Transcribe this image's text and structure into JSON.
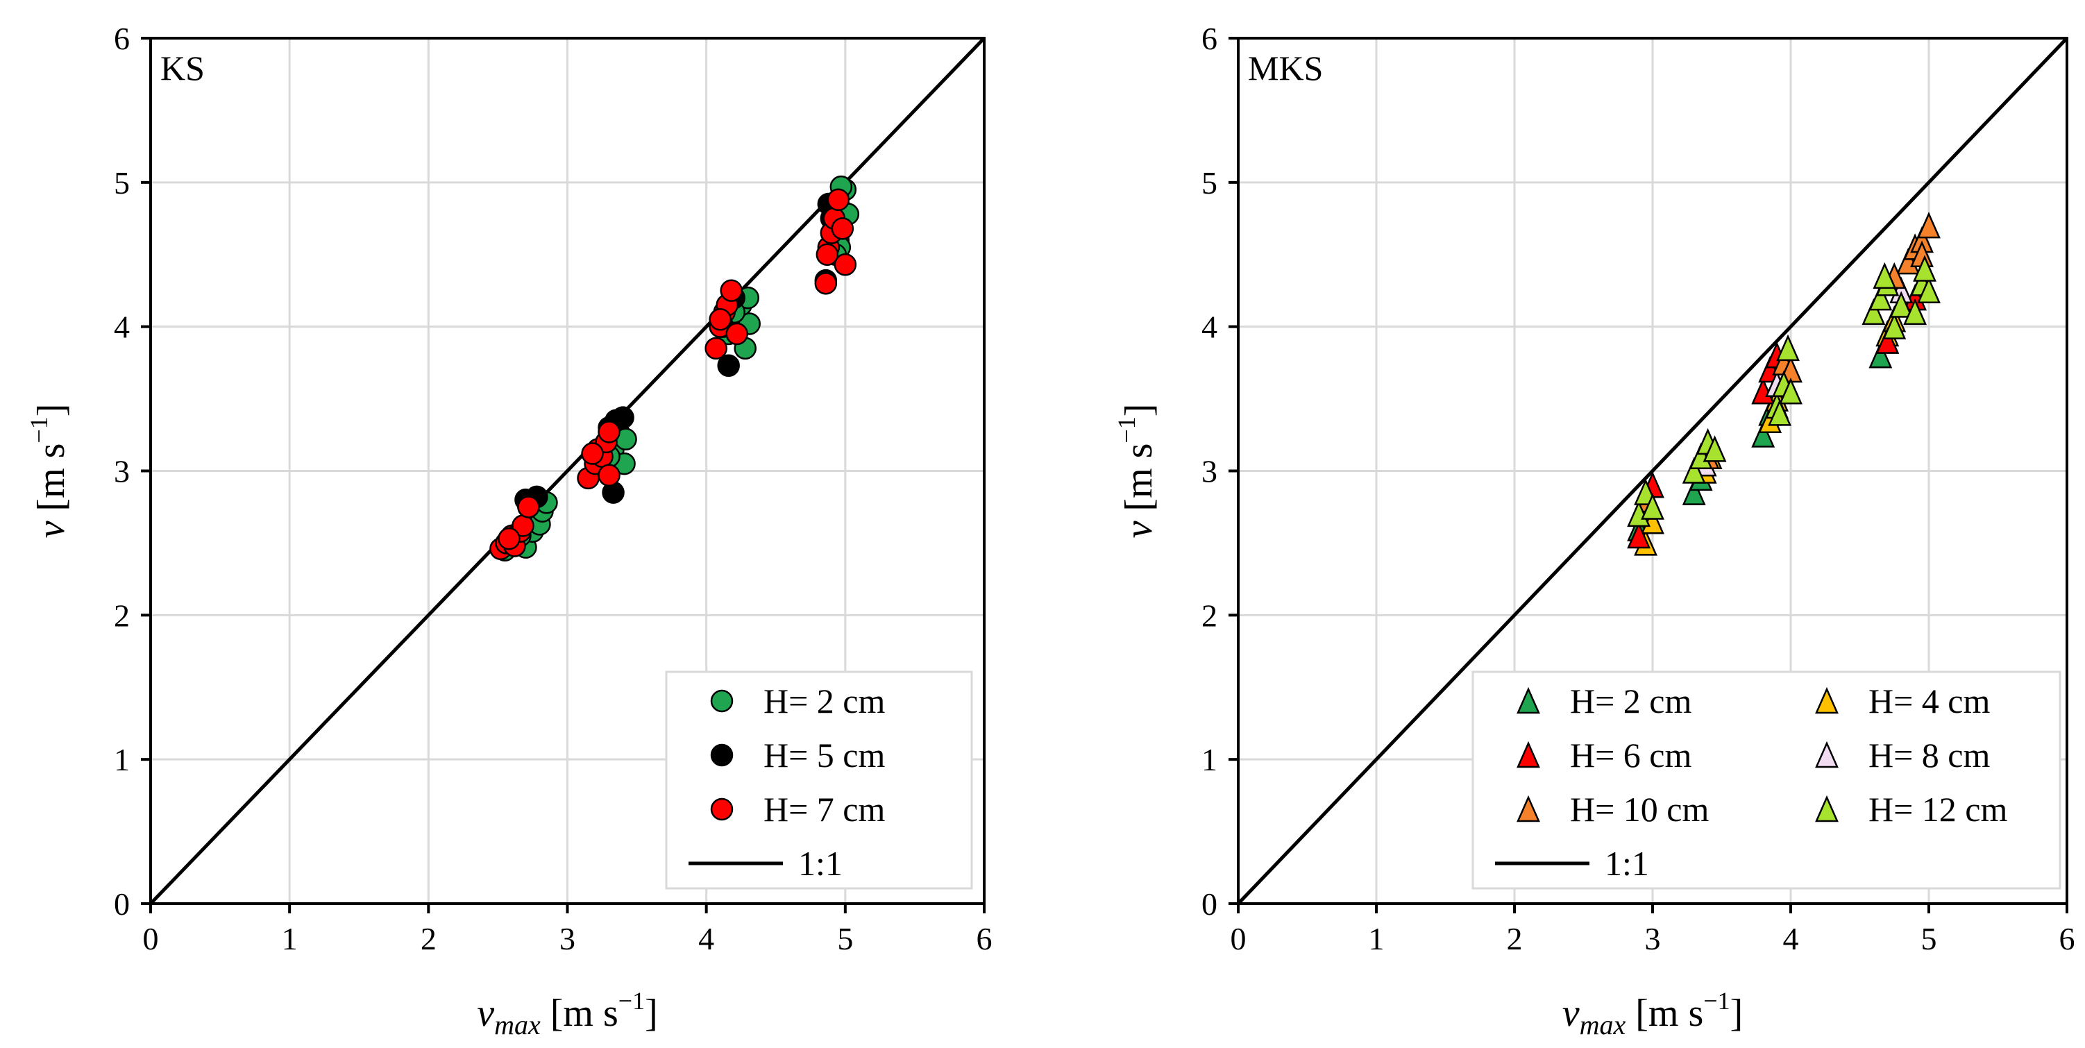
{
  "chart_data": [
    {
      "type": "scatter",
      "panel_label": "KS",
      "xlabel": {
        "main": "v",
        "sub": "max",
        "unit_pre": " [m  s",
        "sup": "−1",
        "unit_post": "]"
      },
      "ylabel": {
        "main": "v",
        "unit_pre": " [m s",
        "sup": "−1",
        "unit_post": "]"
      },
      "xlim": [
        0,
        6
      ],
      "ylim": [
        0,
        6
      ],
      "xticks": [
        "0",
        "1",
        "2",
        "3",
        "4",
        "5",
        "6"
      ],
      "yticks": [
        "0",
        "1",
        "2",
        "3",
        "4",
        "5",
        "6"
      ],
      "grid": true,
      "legend_position": "bottom-right",
      "reference_line": {
        "label": "1:1",
        "from": [
          0,
          0
        ],
        "to": [
          6,
          6
        ]
      },
      "series": [
        {
          "name": "H= 2 cm",
          "marker": "circle",
          "color": "#1fa54f",
          "points": [
            [
              2.55,
              2.45
            ],
            [
              2.62,
              2.5
            ],
            [
              2.7,
              2.47
            ],
            [
              2.75,
              2.58
            ],
            [
              2.8,
              2.63
            ],
            [
              2.82,
              2.72
            ],
            [
              2.85,
              2.78
            ],
            [
              2.66,
              2.55
            ],
            [
              3.33,
              3.15
            ],
            [
              3.38,
              3.25
            ],
            [
              3.41,
              3.05
            ],
            [
              3.36,
              3.3
            ],
            [
              3.3,
              3.1
            ],
            [
              3.42,
              3.22
            ],
            [
              4.16,
              3.95
            ],
            [
              4.22,
              4.05
            ],
            [
              4.28,
              3.85
            ],
            [
              4.31,
              4.02
            ],
            [
              4.25,
              4.15
            ],
            [
              4.3,
              4.2
            ],
            [
              4.2,
              4.1
            ],
            [
              4.95,
              4.6
            ],
            [
              4.98,
              4.8
            ],
            [
              5.0,
              4.95
            ],
            [
              4.96,
              4.55
            ],
            [
              5.02,
              4.78
            ],
            [
              4.93,
              4.5
            ],
            [
              4.97,
              4.97
            ]
          ]
        },
        {
          "name": "H= 5 cm",
          "marker": "circle",
          "color": "#000000",
          "points": [
            [
              2.7,
              2.8
            ],
            [
              2.78,
              2.82
            ],
            [
              2.72,
              2.75
            ],
            [
              3.33,
              2.85
            ],
            [
              3.35,
              3.35
            ],
            [
              3.4,
              3.37
            ],
            [
              3.3,
              3.3
            ],
            [
              4.16,
              3.73
            ],
            [
              4.2,
              4.2
            ],
            [
              4.12,
              4.0
            ],
            [
              4.86,
              4.32
            ],
            [
              4.88,
              4.85
            ],
            [
              4.9,
              4.75
            ]
          ]
        },
        {
          "name": "H= 7 cm",
          "marker": "circle",
          "color": "#ff0000",
          "points": [
            [
              2.52,
              2.46
            ],
            [
              2.56,
              2.5
            ],
            [
              2.6,
              2.55
            ],
            [
              2.62,
              2.48
            ],
            [
              2.66,
              2.58
            ],
            [
              2.68,
              2.62
            ],
            [
              2.72,
              2.75
            ],
            [
              2.58,
              2.53
            ],
            [
              3.15,
              2.95
            ],
            [
              3.2,
              3.05
            ],
            [
              3.22,
              3.15
            ],
            [
              3.25,
              3.1
            ],
            [
              3.28,
              3.2
            ],
            [
              3.3,
              2.97
            ],
            [
              3.3,
              3.27
            ],
            [
              3.18,
              3.12
            ],
            [
              4.07,
              3.85
            ],
            [
              4.1,
              4.0
            ],
            [
              4.13,
              4.1
            ],
            [
              4.15,
              4.15
            ],
            [
              4.18,
              4.25
            ],
            [
              4.22,
              3.95
            ],
            [
              4.1,
              4.05
            ],
            [
              4.86,
              4.3
            ],
            [
              4.88,
              4.55
            ],
            [
              4.9,
              4.65
            ],
            [
              4.92,
              4.75
            ],
            [
              4.95,
              4.88
            ],
            [
              4.98,
              4.68
            ],
            [
              5.0,
              4.43
            ],
            [
              4.87,
              4.5
            ]
          ]
        }
      ]
    },
    {
      "type": "scatter",
      "panel_label": "MKS",
      "xlabel": {
        "main": "v",
        "sub": "max",
        "unit_pre": " [m  s",
        "sup": "−1",
        "unit_post": "]"
      },
      "ylabel": {
        "main": "v",
        "unit_pre": " [m  s",
        "sup": "−1",
        "unit_post": "]"
      },
      "xlim": [
        0,
        6
      ],
      "ylim": [
        0,
        6
      ],
      "xticks": [
        "0",
        "1",
        "2",
        "3",
        "4",
        "5",
        "6"
      ],
      "yticks": [
        "0",
        "1",
        "2",
        "3",
        "4",
        "5",
        "6"
      ],
      "grid": true,
      "legend_position": "bottom-right",
      "reference_line": {
        "label": "1:1",
        "from": [
          0,
          0
        ],
        "to": [
          6,
          6
        ]
      },
      "series": [
        {
          "name": "H= 2 cm",
          "marker": "triangle",
          "color": "#1fa54f",
          "points": [
            [
              2.9,
              2.6
            ],
            [
              2.95,
              2.7
            ],
            [
              3.3,
              2.85
            ],
            [
              3.35,
              2.95
            ],
            [
              3.8,
              3.25
            ],
            [
              3.85,
              3.4
            ],
            [
              4.65,
              3.8
            ],
            [
              4.7,
              3.9
            ]
          ]
        },
        {
          "name": "H= 4 cm",
          "marker": "triangle",
          "color": "#ffc000",
          "points": [
            [
              2.95,
              2.5
            ],
            [
              3.0,
              2.65
            ],
            [
              3.38,
              3.0
            ],
            [
              3.42,
              3.1
            ],
            [
              3.85,
              3.35
            ],
            [
              3.9,
              3.5
            ],
            [
              4.7,
              3.95
            ],
            [
              4.75,
              4.05
            ]
          ]
        },
        {
          "name": "H= 6 cm",
          "marker": "triangle",
          "color": "#ff0000",
          "points": [
            [
              2.9,
              2.55
            ],
            [
              3.0,
              2.9
            ],
            [
              3.35,
              3.05
            ],
            [
              3.4,
              3.15
            ],
            [
              3.8,
              3.55
            ],
            [
              3.85,
              3.7
            ],
            [
              3.9,
              3.8
            ],
            [
              4.7,
              3.9
            ],
            [
              4.9,
              4.2
            ]
          ]
        },
        {
          "name": "H= 8 cm",
          "marker": "triangle",
          "color": "#f2dcf2",
          "points": [
            [
              2.95,
              2.75
            ],
            [
              3.38,
              3.05
            ],
            [
              3.9,
              3.6
            ],
            [
              4.8,
              4.25
            ]
          ]
        },
        {
          "name": "H= 10 cm",
          "marker": "triangle",
          "color": "#f5822a",
          "points": [
            [
              2.95,
              2.8
            ],
            [
              3.4,
              3.1
            ],
            [
              3.95,
              3.75
            ],
            [
              4.0,
              3.7
            ],
            [
              4.85,
              4.45
            ],
            [
              4.9,
              4.55
            ],
            [
              4.95,
              4.6
            ],
            [
              5.0,
              4.7
            ],
            [
              4.95,
              4.5
            ],
            [
              4.75,
              4.35
            ]
          ]
        },
        {
          "name": "H= 12 cm",
          "marker": "triangle",
          "color": "#a6e22e",
          "points": [
            [
              2.9,
              2.7
            ],
            [
              2.95,
              2.85
            ],
            [
              3.0,
              2.75
            ],
            [
              3.3,
              3.0
            ],
            [
              3.35,
              3.1
            ],
            [
              3.4,
              3.2
            ],
            [
              3.45,
              3.15
            ],
            [
              3.9,
              3.45
            ],
            [
              3.95,
              3.6
            ],
            [
              3.98,
              3.85
            ],
            [
              4.0,
              3.55
            ],
            [
              3.92,
              3.4
            ],
            [
              4.6,
              4.1
            ],
            [
              4.65,
              4.2
            ],
            [
              4.7,
              4.3
            ],
            [
              4.75,
              4.0
            ],
            [
              4.8,
              4.15
            ],
            [
              4.9,
              4.1
            ],
            [
              4.95,
              4.3
            ],
            [
              5.0,
              4.25
            ],
            [
              4.97,
              4.4
            ],
            [
              4.68,
              4.35
            ]
          ]
        }
      ]
    }
  ]
}
